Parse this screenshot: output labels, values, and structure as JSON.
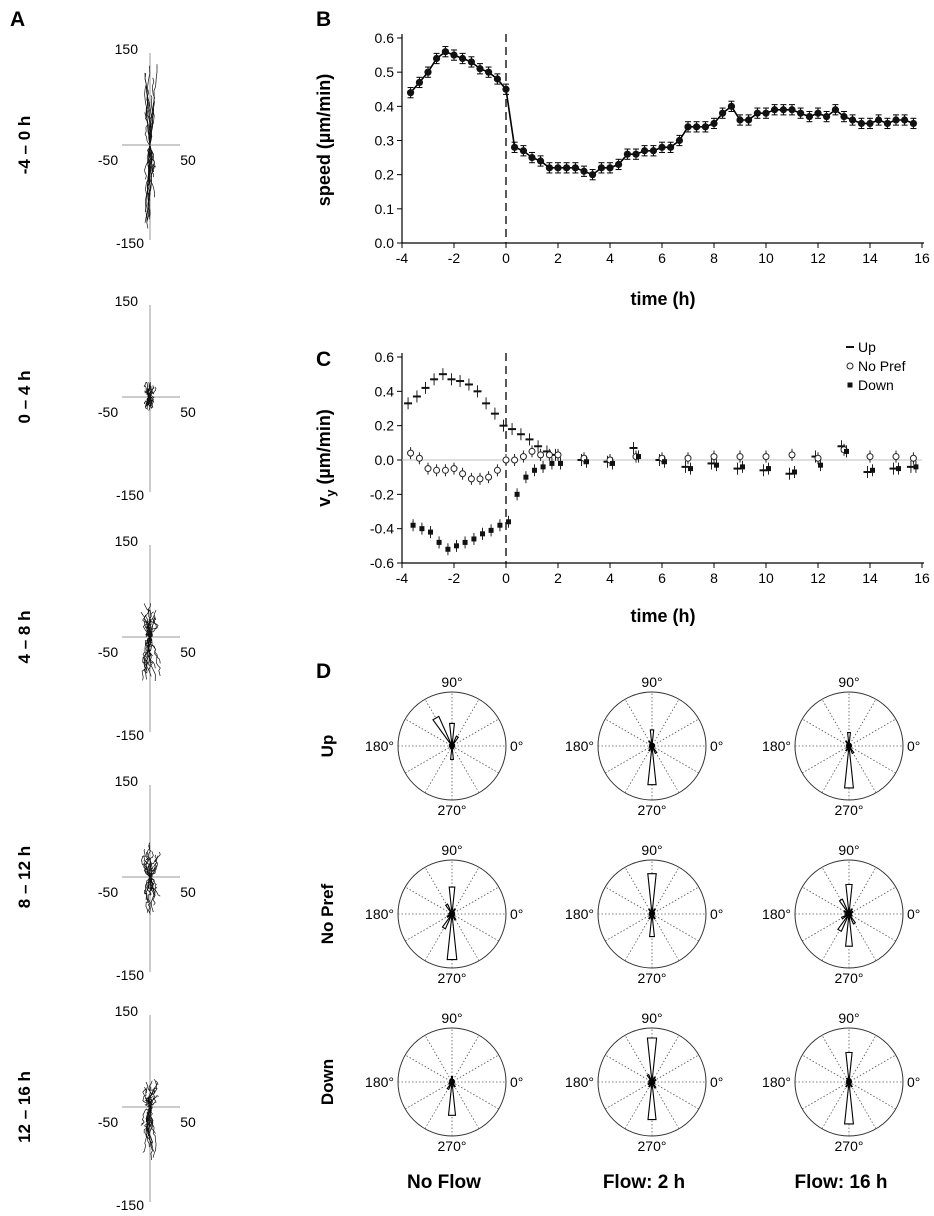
{
  "panel_letters": [
    "A",
    "B",
    "C",
    "D"
  ],
  "chart_data": [
    {
      "panel": "A",
      "type": "scatter",
      "description_kind": "track plots",
      "tick_labels": {
        "x": [
          "-50",
          "50"
        ],
        "y": [
          "150",
          "-150"
        ]
      },
      "xlim": [
        -50,
        50
      ],
      "ylim": [
        -150,
        150
      ],
      "rows": [
        {
          "label": "-4 – 0 h",
          "y_extent": [
            -140,
            140
          ],
          "x_spread": 6
        },
        {
          "label": "0 – 4 h",
          "y_extent": [
            -25,
            25
          ],
          "x_spread": 5
        },
        {
          "label": "4 – 8 h",
          "y_extent": [
            -75,
            60
          ],
          "x_spread": 9
        },
        {
          "label": "8 – 12 h",
          "y_extent": [
            -65,
            55
          ],
          "x_spread": 8
        },
        {
          "label": "12 – 16 h",
          "y_extent": [
            -90,
            45
          ],
          "x_spread": 8
        }
      ]
    },
    {
      "panel": "B",
      "type": "line",
      "xlabel": "time (h)",
      "ylabel": "speed (µm/min)",
      "xlim": [
        -4,
        16
      ],
      "ylim": [
        0,
        0.6
      ],
      "xticks": [
        -4,
        -2,
        0,
        2,
        4,
        6,
        8,
        10,
        12,
        14,
        16
      ],
      "yticks": [
        "0.0",
        "0.1",
        "0.2",
        "0.3",
        "0.4",
        "0.5",
        "0.6"
      ],
      "vline_x": 0,
      "x": [
        -3.67,
        -3.33,
        -3,
        -2.67,
        -2.33,
        -2,
        -1.67,
        -1.33,
        -1,
        -0.67,
        -0.33,
        0,
        0.33,
        0.67,
        1,
        1.33,
        1.67,
        2,
        2.33,
        2.67,
        3,
        3.33,
        3.67,
        4,
        4.33,
        4.67,
        5,
        5.33,
        5.67,
        6,
        6.33,
        6.67,
        7,
        7.33,
        7.67,
        8,
        8.33,
        8.67,
        9,
        9.33,
        9.67,
        10,
        10.33,
        10.67,
        11,
        11.33,
        11.67,
        12,
        12.33,
        12.67,
        13,
        13.33,
        13.67,
        14,
        14.33,
        14.67,
        15,
        15.33,
        15.67
      ],
      "y": [
        0.44,
        0.47,
        0.5,
        0.54,
        0.56,
        0.55,
        0.54,
        0.53,
        0.51,
        0.5,
        0.48,
        0.45,
        0.28,
        0.27,
        0.25,
        0.24,
        0.22,
        0.22,
        0.22,
        0.22,
        0.21,
        0.2,
        0.22,
        0.22,
        0.23,
        0.26,
        0.26,
        0.27,
        0.27,
        0.28,
        0.28,
        0.3,
        0.34,
        0.34,
        0.34,
        0.35,
        0.38,
        0.4,
        0.36,
        0.36,
        0.38,
        0.38,
        0.39,
        0.39,
        0.39,
        0.38,
        0.37,
        0.38,
        0.37,
        0.39,
        0.37,
        0.36,
        0.35,
        0.35,
        0.36,
        0.35,
        0.36,
        0.36,
        0.35
      ],
      "error": 0.015
    },
    {
      "panel": "C",
      "type": "scatter",
      "xlabel": "time (h)",
      "ylabel": "v",
      "ylabel_sub": "y",
      "ylabel_unit": " (µm/min)",
      "xlim": [
        -4,
        16
      ],
      "ylim": [
        -0.6,
        0.6
      ],
      "xticks": [
        -4,
        -2,
        0,
        2,
        4,
        6,
        8,
        10,
        12,
        14,
        16
      ],
      "yticks": [
        "0.6",
        "0.4",
        "0.2",
        "0.0",
        "-0.2",
        "-0.4",
        "-0.6"
      ],
      "vline_x": 0,
      "legend_position": "top-right",
      "series": [
        {
          "name": "Up",
          "marker": "dash",
          "x": [
            -3.67,
            -3.33,
            -3,
            -2.67,
            -2.33,
            -2,
            -1.67,
            -1.33,
            -1,
            -0.67,
            -0.33,
            0,
            0.33,
            0.67,
            1,
            1.33,
            1.67,
            2,
            3,
            4,
            5,
            6,
            7,
            8,
            9,
            10,
            11,
            12,
            13,
            14,
            15,
            15.67
          ],
          "y": [
            0.33,
            0.37,
            0.42,
            0.47,
            0.5,
            0.47,
            0.46,
            0.44,
            0.4,
            0.33,
            0.27,
            0.2,
            0.18,
            0.15,
            0.12,
            0.08,
            0.05,
            0.03,
            0.0,
            -0.01,
            0.07,
            0.0,
            -0.04,
            -0.02,
            -0.05,
            -0.06,
            -0.08,
            0.02,
            0.08,
            -0.07,
            -0.05,
            -0.04
          ]
        },
        {
          "name": "No Pref",
          "marker": "circle",
          "x": [
            -3.67,
            -3.33,
            -3,
            -2.67,
            -2.33,
            -2,
            -1.67,
            -1.33,
            -1,
            -0.67,
            -0.33,
            0,
            0.33,
            0.67,
            1,
            1.33,
            1.67,
            2,
            3,
            4,
            5,
            6,
            7,
            8,
            9,
            10,
            11,
            12,
            13,
            14,
            15,
            15.67
          ],
          "y": [
            0.04,
            0.01,
            -0.05,
            -0.06,
            -0.06,
            -0.05,
            -0.08,
            -0.11,
            -0.11,
            -0.1,
            -0.06,
            0.0,
            0.0,
            0.02,
            0.05,
            0.03,
            0.03,
            0.03,
            0.01,
            0.0,
            0.02,
            0.01,
            0.01,
            0.02,
            0.02,
            0.02,
            0.03,
            0.01,
            0.06,
            0.02,
            0.02,
            0.01
          ]
        },
        {
          "name": "Down",
          "marker": "square",
          "x": [
            -3.67,
            -3.33,
            -3,
            -2.67,
            -2.33,
            -2,
            -1.67,
            -1.33,
            -1,
            -0.67,
            -0.33,
            0,
            0.33,
            0.67,
            1,
            1.33,
            1.67,
            2,
            3,
            4,
            5,
            6,
            7,
            8,
            9,
            10,
            11,
            12,
            13,
            14,
            15,
            15.67
          ],
          "y": [
            -0.38,
            -0.4,
            -0.42,
            -0.48,
            -0.52,
            -0.5,
            -0.48,
            -0.46,
            -0.43,
            -0.41,
            -0.38,
            -0.36,
            -0.2,
            -0.1,
            -0.06,
            -0.04,
            -0.02,
            -0.02,
            -0.01,
            -0.02,
            0.02,
            -0.01,
            -0.05,
            -0.03,
            -0.04,
            -0.05,
            -0.07,
            -0.03,
            0.05,
            -0.06,
            -0.05,
            -0.04
          ]
        }
      ],
      "error": 0.035
    },
    {
      "panel": "D",
      "type": "rose",
      "angle_labels": [
        "90°",
        "180°",
        "0°",
        "270°"
      ],
      "row_labels": [
        "Up",
        "No Pref",
        "Down"
      ],
      "column_labels": [
        "No Flow",
        "Flow: 2 h",
        "Flow: 16 h"
      ],
      "bins_deg": [
        0,
        30,
        60,
        90,
        120,
        150,
        180,
        210,
        240,
        270,
        300,
        330
      ],
      "max_radius_fraction": 1.0,
      "roses": [
        [
          [
            0.03,
            0.05,
            0.2,
            0.42,
            0.6,
            0.05,
            0.03,
            0.04,
            0.05,
            0.25,
            0.05,
            0.03
          ],
          [
            0.03,
            0.05,
            0.05,
            0.3,
            0.1,
            0.04,
            0.03,
            0.05,
            0.1,
            0.72,
            0.15,
            0.03
          ],
          [
            0.03,
            0.04,
            0.05,
            0.25,
            0.1,
            0.04,
            0.03,
            0.05,
            0.1,
            0.78,
            0.15,
            0.03
          ]
        ],
        [
          [
            0.03,
            0.05,
            0.1,
            0.5,
            0.2,
            0.05,
            0.06,
            0.1,
            0.3,
            0.85,
            0.12,
            0.05
          ],
          [
            0.03,
            0.05,
            0.1,
            0.75,
            0.1,
            0.05,
            0.05,
            0.05,
            0.1,
            0.42,
            0.1,
            0.03
          ],
          [
            0.04,
            0.08,
            0.1,
            0.55,
            0.3,
            0.1,
            0.07,
            0.15,
            0.35,
            0.6,
            0.2,
            0.06
          ]
        ],
        [
          [
            0.03,
            0.03,
            0.05,
            0.1,
            0.06,
            0.03,
            0.03,
            0.06,
            0.15,
            0.62,
            0.1,
            0.03
          ],
          [
            0.05,
            0.08,
            0.1,
            0.82,
            0.15,
            0.06,
            0.06,
            0.08,
            0.1,
            0.7,
            0.12,
            0.05
          ],
          [
            0.03,
            0.04,
            0.06,
            0.55,
            0.08,
            0.03,
            0.03,
            0.05,
            0.1,
            0.78,
            0.1,
            0.03
          ]
        ]
      ]
    }
  ]
}
